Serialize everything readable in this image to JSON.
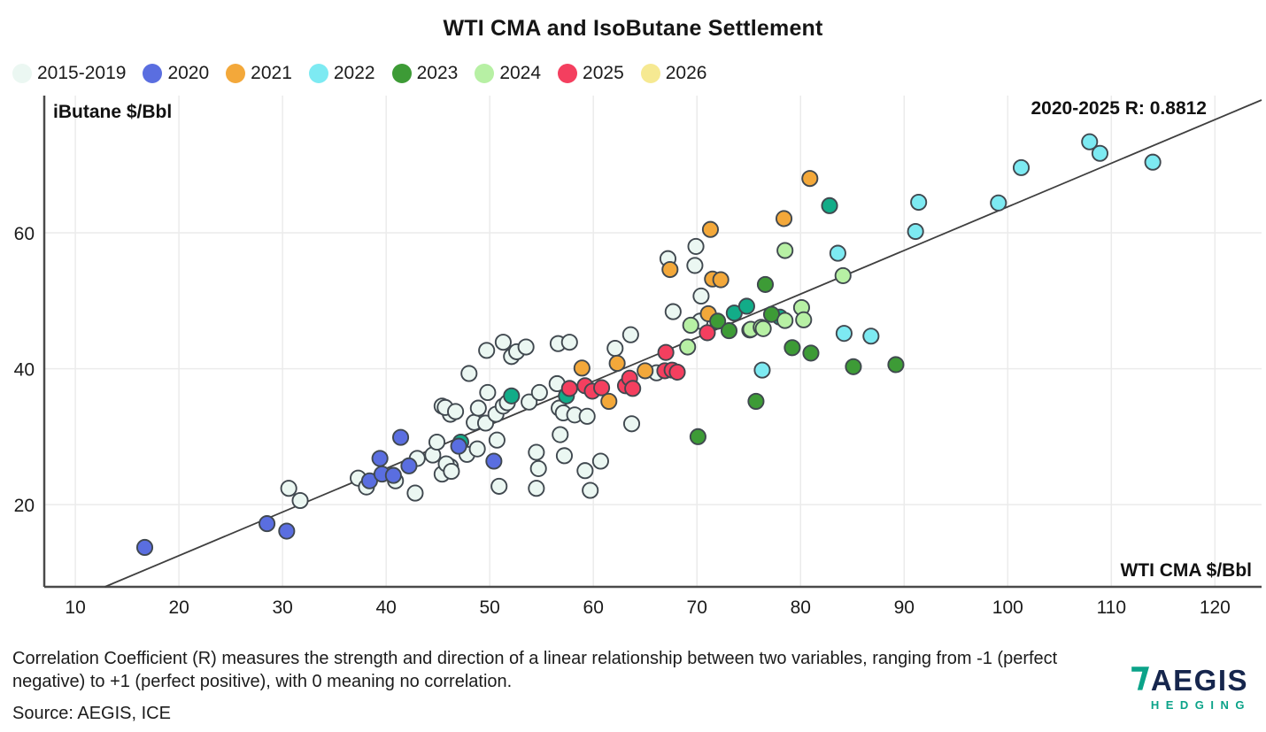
{
  "title": "WTI CMA and IsoButane Settlement",
  "annotation": "2020-2025 R: 0.8812",
  "y_axis_label": "iButane $/Bbl",
  "x_axis_label": "WTI CMA $/Bbl",
  "legend": [
    {
      "label": "2015-2019",
      "color": "#ebf7f2"
    },
    {
      "label": "2020",
      "color": "#5a6ee0"
    },
    {
      "label": "2021",
      "color": "#f3a83a"
    },
    {
      "label": "2022",
      "color": "#7deaf2"
    },
    {
      "label": "2023",
      "color": "#3d9b36"
    },
    {
      "label": "2024",
      "color": "#b7f0a4"
    },
    {
      "label": "2025",
      "color": "#f43f5f"
    },
    {
      "label": "2026",
      "color": "#f6e992"
    }
  ],
  "footer": {
    "note": "Correlation Coefficient (R) measures the strength and direction of a linear relationship between two variables, ranging from -1 (perfect negative) to +1 (perfect positive), with 0 meaning no correlation.",
    "source": "Source: AEGIS, ICE"
  },
  "logo": {
    "text": "AEGIS",
    "subtext": "HEDGING",
    "navy": "#16264d",
    "teal": "#0ba389"
  },
  "chart_data": {
    "type": "scatter",
    "title": "WTI CMA and IsoButane Settlement",
    "xlabel": "WTI CMA $/Bbl",
    "ylabel": "iButane $/Bbl",
    "xlim": [
      7,
      124.5
    ],
    "ylim": [
      7.9,
      80.2
    ],
    "x_ticks": [
      10,
      20,
      30,
      40,
      50,
      60,
      70,
      80,
      90,
      100,
      110,
      120
    ],
    "y_ticks": [
      20,
      40,
      60
    ],
    "grid": true,
    "legend_position": "top-left",
    "annotation": {
      "text": "2020-2025 R: 0.8812",
      "x": 116,
      "y": 78
    },
    "trend_line": {
      "x1": 12.85,
      "y1": 7.9,
      "x2": 124.5,
      "y2": 79.55
    },
    "series": [
      {
        "name": "2015-2019",
        "color": "#ebf7f2",
        "in_legend": true,
        "points": [
          [
            30.6,
            22.4
          ],
          [
            31.7,
            20.6
          ],
          [
            37.3,
            23.9
          ],
          [
            38.1,
            22.6
          ],
          [
            40.9,
            23.5
          ],
          [
            42.8,
            21.7
          ],
          [
            43,
            26.8
          ],
          [
            44.5,
            27.3
          ],
          [
            44.9,
            29.2
          ],
          [
            45.4,
            24.5
          ],
          [
            46.2,
            25.6
          ],
          [
            45.4,
            34.5
          ],
          [
            46.2,
            33.3
          ],
          [
            45.7,
            34.3
          ],
          [
            46.7,
            33.7
          ],
          [
            48,
            39.3
          ],
          [
            48.5,
            32.1
          ],
          [
            49.6,
            32
          ],
          [
            48.9,
            34.2
          ],
          [
            47.8,
            27.4
          ],
          [
            48.8,
            28.2
          ],
          [
            45.8,
            26
          ],
          [
            46.3,
            24.9
          ],
          [
            49.8,
            36.5
          ],
          [
            50.7,
            29.5
          ],
          [
            50.6,
            33.3
          ],
          [
            51.3,
            34.5
          ],
          [
            51.7,
            35
          ],
          [
            53.8,
            35.1
          ],
          [
            54.8,
            36.5
          ],
          [
            56.5,
            37.8
          ],
          [
            56.7,
            34.2
          ],
          [
            57.1,
            33.5
          ],
          [
            58.2,
            33.2
          ],
          [
            59.4,
            33
          ],
          [
            63.7,
            31.9
          ],
          [
            56.8,
            30.3
          ],
          [
            54.5,
            27.7
          ],
          [
            54.7,
            25.3
          ],
          [
            57.2,
            27.2
          ],
          [
            59.2,
            25
          ],
          [
            60.7,
            26.4
          ],
          [
            50.9,
            22.7
          ],
          [
            54.5,
            22.4
          ],
          [
            59.7,
            22.1
          ],
          [
            49.7,
            42.7
          ],
          [
            51.3,
            43.9
          ],
          [
            52.1,
            41.8
          ],
          [
            52.6,
            42.5
          ],
          [
            53.5,
            43.2
          ],
          [
            56.6,
            43.7
          ],
          [
            57.7,
            43.9
          ],
          [
            62.1,
            43
          ],
          [
            63.6,
            45
          ],
          [
            66.1,
            39.4
          ],
          [
            67.2,
            56.2
          ],
          [
            69.8,
            55.2
          ],
          [
            69.9,
            58
          ],
          [
            70.4,
            50.7
          ],
          [
            67.7,
            48.4
          ],
          [
            70.3,
            47
          ]
        ]
      },
      {
        "name": "unlabeled-teal",
        "color": "#12ac88",
        "in_legend": false,
        "points": [
          [
            47.2,
            29.2
          ],
          [
            52.1,
            36
          ],
          [
            57.4,
            36
          ],
          [
            73.6,
            48.2
          ],
          [
            74.8,
            49.2
          ],
          [
            78,
            47.6
          ],
          [
            82.8,
            64
          ]
        ]
      },
      {
        "name": "2020",
        "color": "#5a6ee0",
        "in_legend": true,
        "points": [
          [
            16.7,
            13.7
          ],
          [
            28.5,
            17.2
          ],
          [
            30.4,
            16.1
          ],
          [
            38.4,
            23.5
          ],
          [
            39.4,
            26.8
          ],
          [
            39.6,
            24.5
          ],
          [
            40.7,
            24.3
          ],
          [
            41.4,
            29.9
          ],
          [
            42.2,
            25.7
          ],
          [
            47,
            28.6
          ],
          [
            50.4,
            26.4
          ]
        ]
      },
      {
        "name": "2022",
        "color": "#7deaf2",
        "in_legend": true,
        "points": [
          [
            76.3,
            39.8
          ],
          [
            83.6,
            57
          ],
          [
            84.2,
            45.2
          ],
          [
            86.8,
            44.8
          ],
          [
            91.1,
            60.2
          ],
          [
            91.4,
            64.5
          ],
          [
            99.1,
            64.4
          ],
          [
            101.3,
            69.6
          ],
          [
            107.9,
            73.4
          ],
          [
            108.9,
            71.7
          ],
          [
            114,
            70.4
          ]
        ]
      },
      {
        "name": "2021",
        "color": "#f3a83a",
        "in_legend": true,
        "points": [
          [
            58.9,
            40.1
          ],
          [
            61.5,
            35.2
          ],
          [
            62.3,
            40.8
          ],
          [
            65,
            39.7
          ],
          [
            67.4,
            54.6
          ],
          [
            71.1,
            48.1
          ],
          [
            71.3,
            60.5
          ],
          [
            71.5,
            53.2
          ],
          [
            72.3,
            53.1
          ],
          [
            78.4,
            62.1
          ],
          [
            80.9,
            68
          ]
        ]
      },
      {
        "name": "2023",
        "color": "#3d9b36",
        "in_legend": true,
        "points": [
          [
            70.1,
            30
          ],
          [
            72,
            47
          ],
          [
            73.1,
            45.6
          ],
          [
            75.7,
            35.2
          ],
          [
            76.6,
            52.4
          ],
          [
            77.2,
            48
          ],
          [
            79.2,
            43.1
          ],
          [
            81,
            42.3
          ],
          [
            85.1,
            40.3
          ],
          [
            89.2,
            40.6
          ]
        ]
      },
      {
        "name": "2024",
        "color": "#b7f0a4",
        "in_legend": true,
        "points": [
          [
            69.1,
            43.2
          ],
          [
            69.4,
            46.4
          ],
          [
            75.1,
            45.7
          ],
          [
            75.2,
            45.8
          ],
          [
            76.2,
            46.1
          ],
          [
            76.4,
            45.9
          ],
          [
            78.5,
            47.1
          ],
          [
            78.5,
            57.4
          ],
          [
            80.1,
            49
          ],
          [
            80.3,
            47.2
          ],
          [
            84.1,
            53.7
          ]
        ]
      },
      {
        "name": "2025",
        "color": "#f43f5f",
        "in_legend": true,
        "points": [
          [
            57.7,
            37.1
          ],
          [
            59.2,
            37.5
          ],
          [
            59.9,
            36.7
          ],
          [
            60.8,
            37.2
          ],
          [
            63.1,
            37.5
          ],
          [
            63.5,
            38.6
          ],
          [
            63.8,
            37.1
          ],
          [
            66.9,
            39.7
          ],
          [
            67.6,
            39.8
          ],
          [
            68.1,
            39.5
          ],
          [
            67,
            42.4
          ],
          [
            71,
            45.3
          ]
        ]
      },
      {
        "name": "2026",
        "color": "#f6e992",
        "in_legend": true,
        "points": []
      }
    ]
  }
}
